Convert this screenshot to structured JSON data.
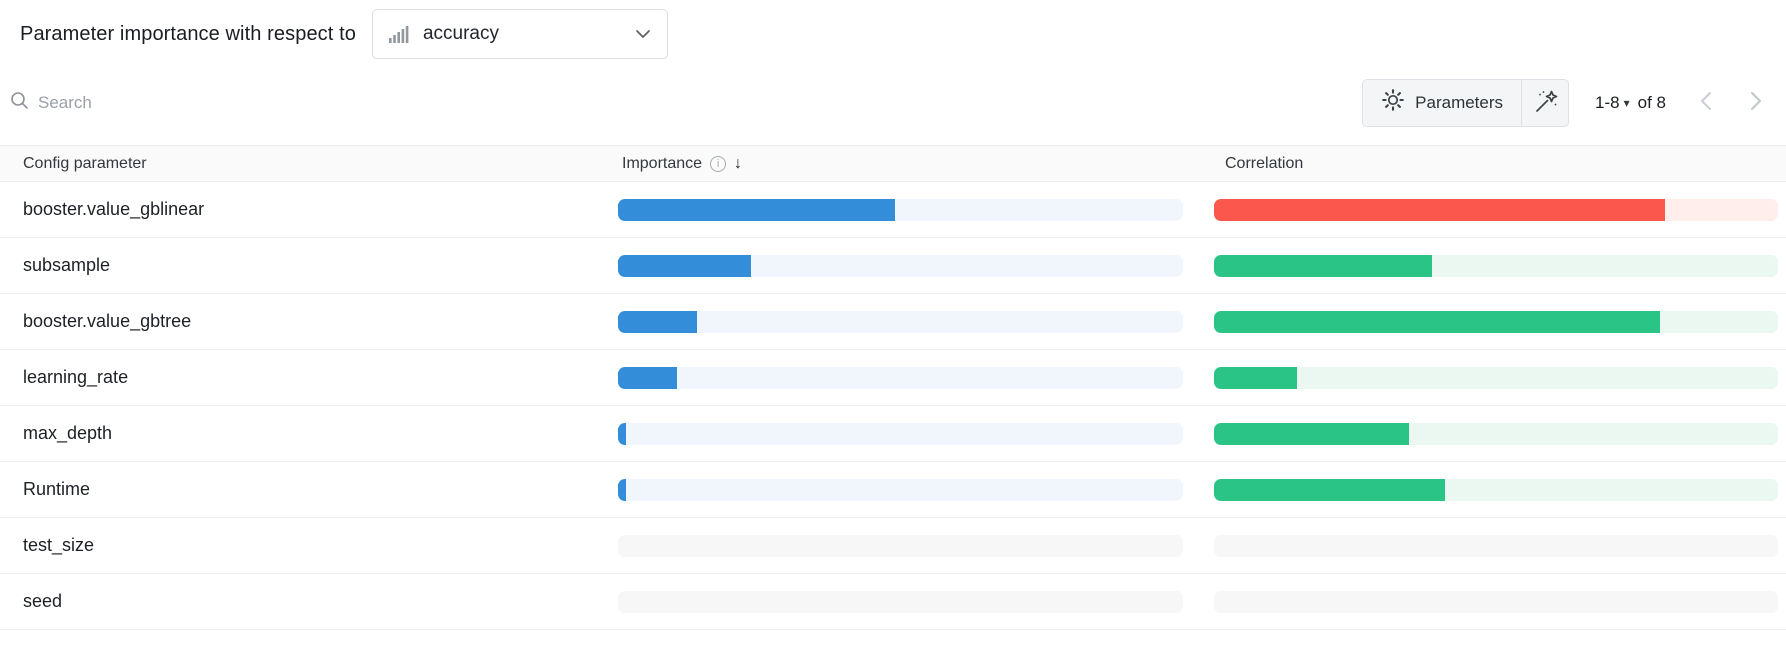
{
  "header": {
    "title": "Parameter importance with respect to",
    "metric_select": {
      "value": "accuracy"
    }
  },
  "toolbar": {
    "search_placeholder": "Search",
    "parameters_label": "Parameters",
    "pagination": {
      "range": "1-8",
      "of_label": "of 8"
    }
  },
  "icons": {
    "info_glyph": "i",
    "sort_desc_glyph": "↓",
    "caret_glyph": "▾"
  },
  "table": {
    "columns": {
      "parameter": "Config parameter",
      "importance": "Importance",
      "correlation": "Correlation"
    },
    "rows": [
      {
        "name": "booster.value_gblinear",
        "importance": 0.49,
        "correlation": 0.8,
        "correlation_sign": "negative"
      },
      {
        "name": "subsample",
        "importance": 0.235,
        "correlation": 0.387,
        "correlation_sign": "positive"
      },
      {
        "name": "booster.value_gbtree",
        "importance": 0.14,
        "correlation": 0.79,
        "correlation_sign": "positive"
      },
      {
        "name": "learning_rate",
        "importance": 0.105,
        "correlation": 0.147,
        "correlation_sign": "positive"
      },
      {
        "name": "max_depth",
        "importance": 0.014,
        "correlation": 0.345,
        "correlation_sign": "positive"
      },
      {
        "name": "Runtime",
        "importance": 0.014,
        "correlation": 0.41,
        "correlation_sign": "positive"
      },
      {
        "name": "test_size",
        "importance": 0,
        "correlation": 0,
        "correlation_sign": "none"
      },
      {
        "name": "seed",
        "importance": 0,
        "correlation": 0,
        "correlation_sign": "none"
      }
    ]
  },
  "colors": {
    "importance_bar": "#338dd8",
    "importance_track": "#f0f6fb",
    "positive_bar": "#2bc487",
    "positive_track": "#ebf8f2",
    "negative_bar": "#fc574d",
    "negative_track": "#ffeeec",
    "empty_track": "#f7f7f7"
  }
}
